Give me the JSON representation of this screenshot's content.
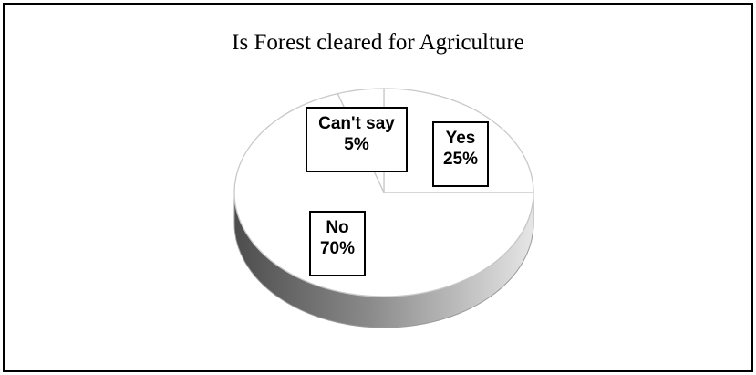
{
  "chart_data": {
    "type": "pie",
    "title": "Is Forest cleared for Agriculture",
    "slices": [
      {
        "label": "Yes",
        "value": 25,
        "value_label": "25%"
      },
      {
        "label": "No",
        "value": 70,
        "value_label": "70%"
      },
      {
        "label": "Can't say",
        "value": 5,
        "value_label": "5%"
      }
    ],
    "style": "3d",
    "legend": "none",
    "colors": {
      "face": "#ffffff",
      "edge": "#c8c8c8",
      "side_dark": "#4d4d4d",
      "side_light": "#e6e6e6"
    }
  }
}
